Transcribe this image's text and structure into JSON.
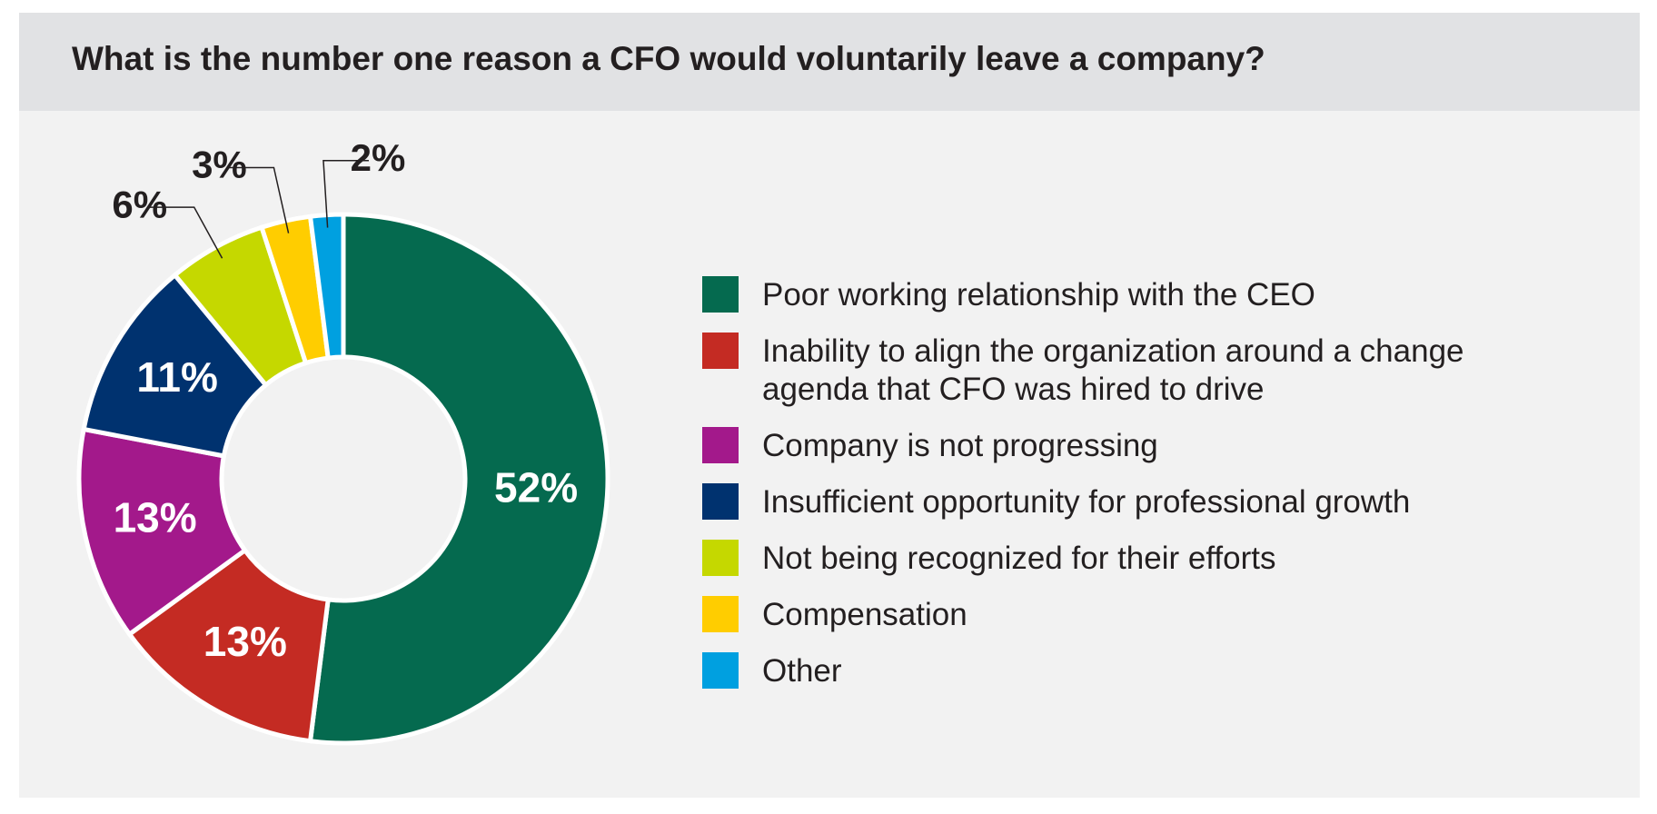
{
  "chart_data": {
    "type": "donut",
    "title": "What is the number one reason a CFO would voluntarily leave a company?",
    "categories": [
      "Poor working relationship with the CEO",
      "Inability to align the organization around a change agenda that CFO was hired to drive",
      "Company is not progressing",
      "Insufficient opportunity for professional growth",
      "Not being recognized for their efforts",
      "Compensation",
      "Other"
    ],
    "values": [
      52,
      13,
      13,
      11,
      6,
      3,
      2
    ],
    "value_labels": [
      "52%",
      "13%",
      "13%",
      "11%",
      "6%",
      "3%",
      "2%"
    ],
    "colors": [
      "#056a4f",
      "#c42b23",
      "#a3198b",
      "#00326f",
      "#c5d800",
      "#ffcd00",
      "#00a0e0"
    ],
    "legend": "right"
  }
}
